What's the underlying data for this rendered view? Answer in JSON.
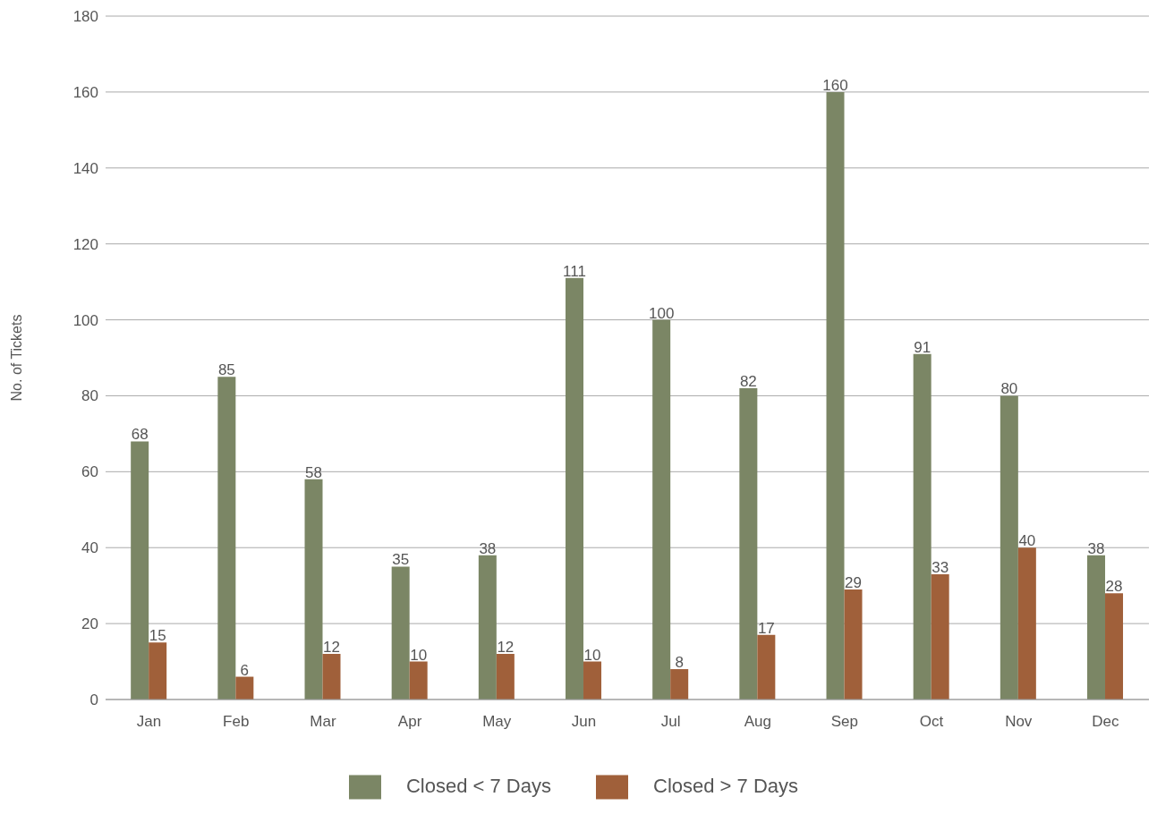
{
  "chart_data": {
    "type": "bar",
    "ylabel": "No. of Tickets",
    "categories": [
      "Jan",
      "Feb",
      "Mar",
      "Apr",
      "May",
      "Jun",
      "Jul",
      "Aug",
      "Sep",
      "Oct",
      "Nov",
      "Dec"
    ],
    "series": [
      {
        "name": "Closed < 7 Days",
        "color": "#7b8665",
        "values": [
          68,
          85,
          58,
          35,
          38,
          111,
          100,
          82,
          160,
          91,
          80,
          38
        ]
      },
      {
        "name": "Closed > 7 Days",
        "color": "#a0603a",
        "values": [
          15,
          6,
          12,
          10,
          12,
          10,
          8,
          17,
          29,
          33,
          40,
          28
        ]
      }
    ],
    "ylim": [
      0,
      180
    ],
    "yticks": [
      0,
      20,
      40,
      60,
      80,
      100,
      120,
      140,
      160,
      180
    ],
    "grid": "y",
    "legend": "bottom",
    "data_labels": true
  }
}
